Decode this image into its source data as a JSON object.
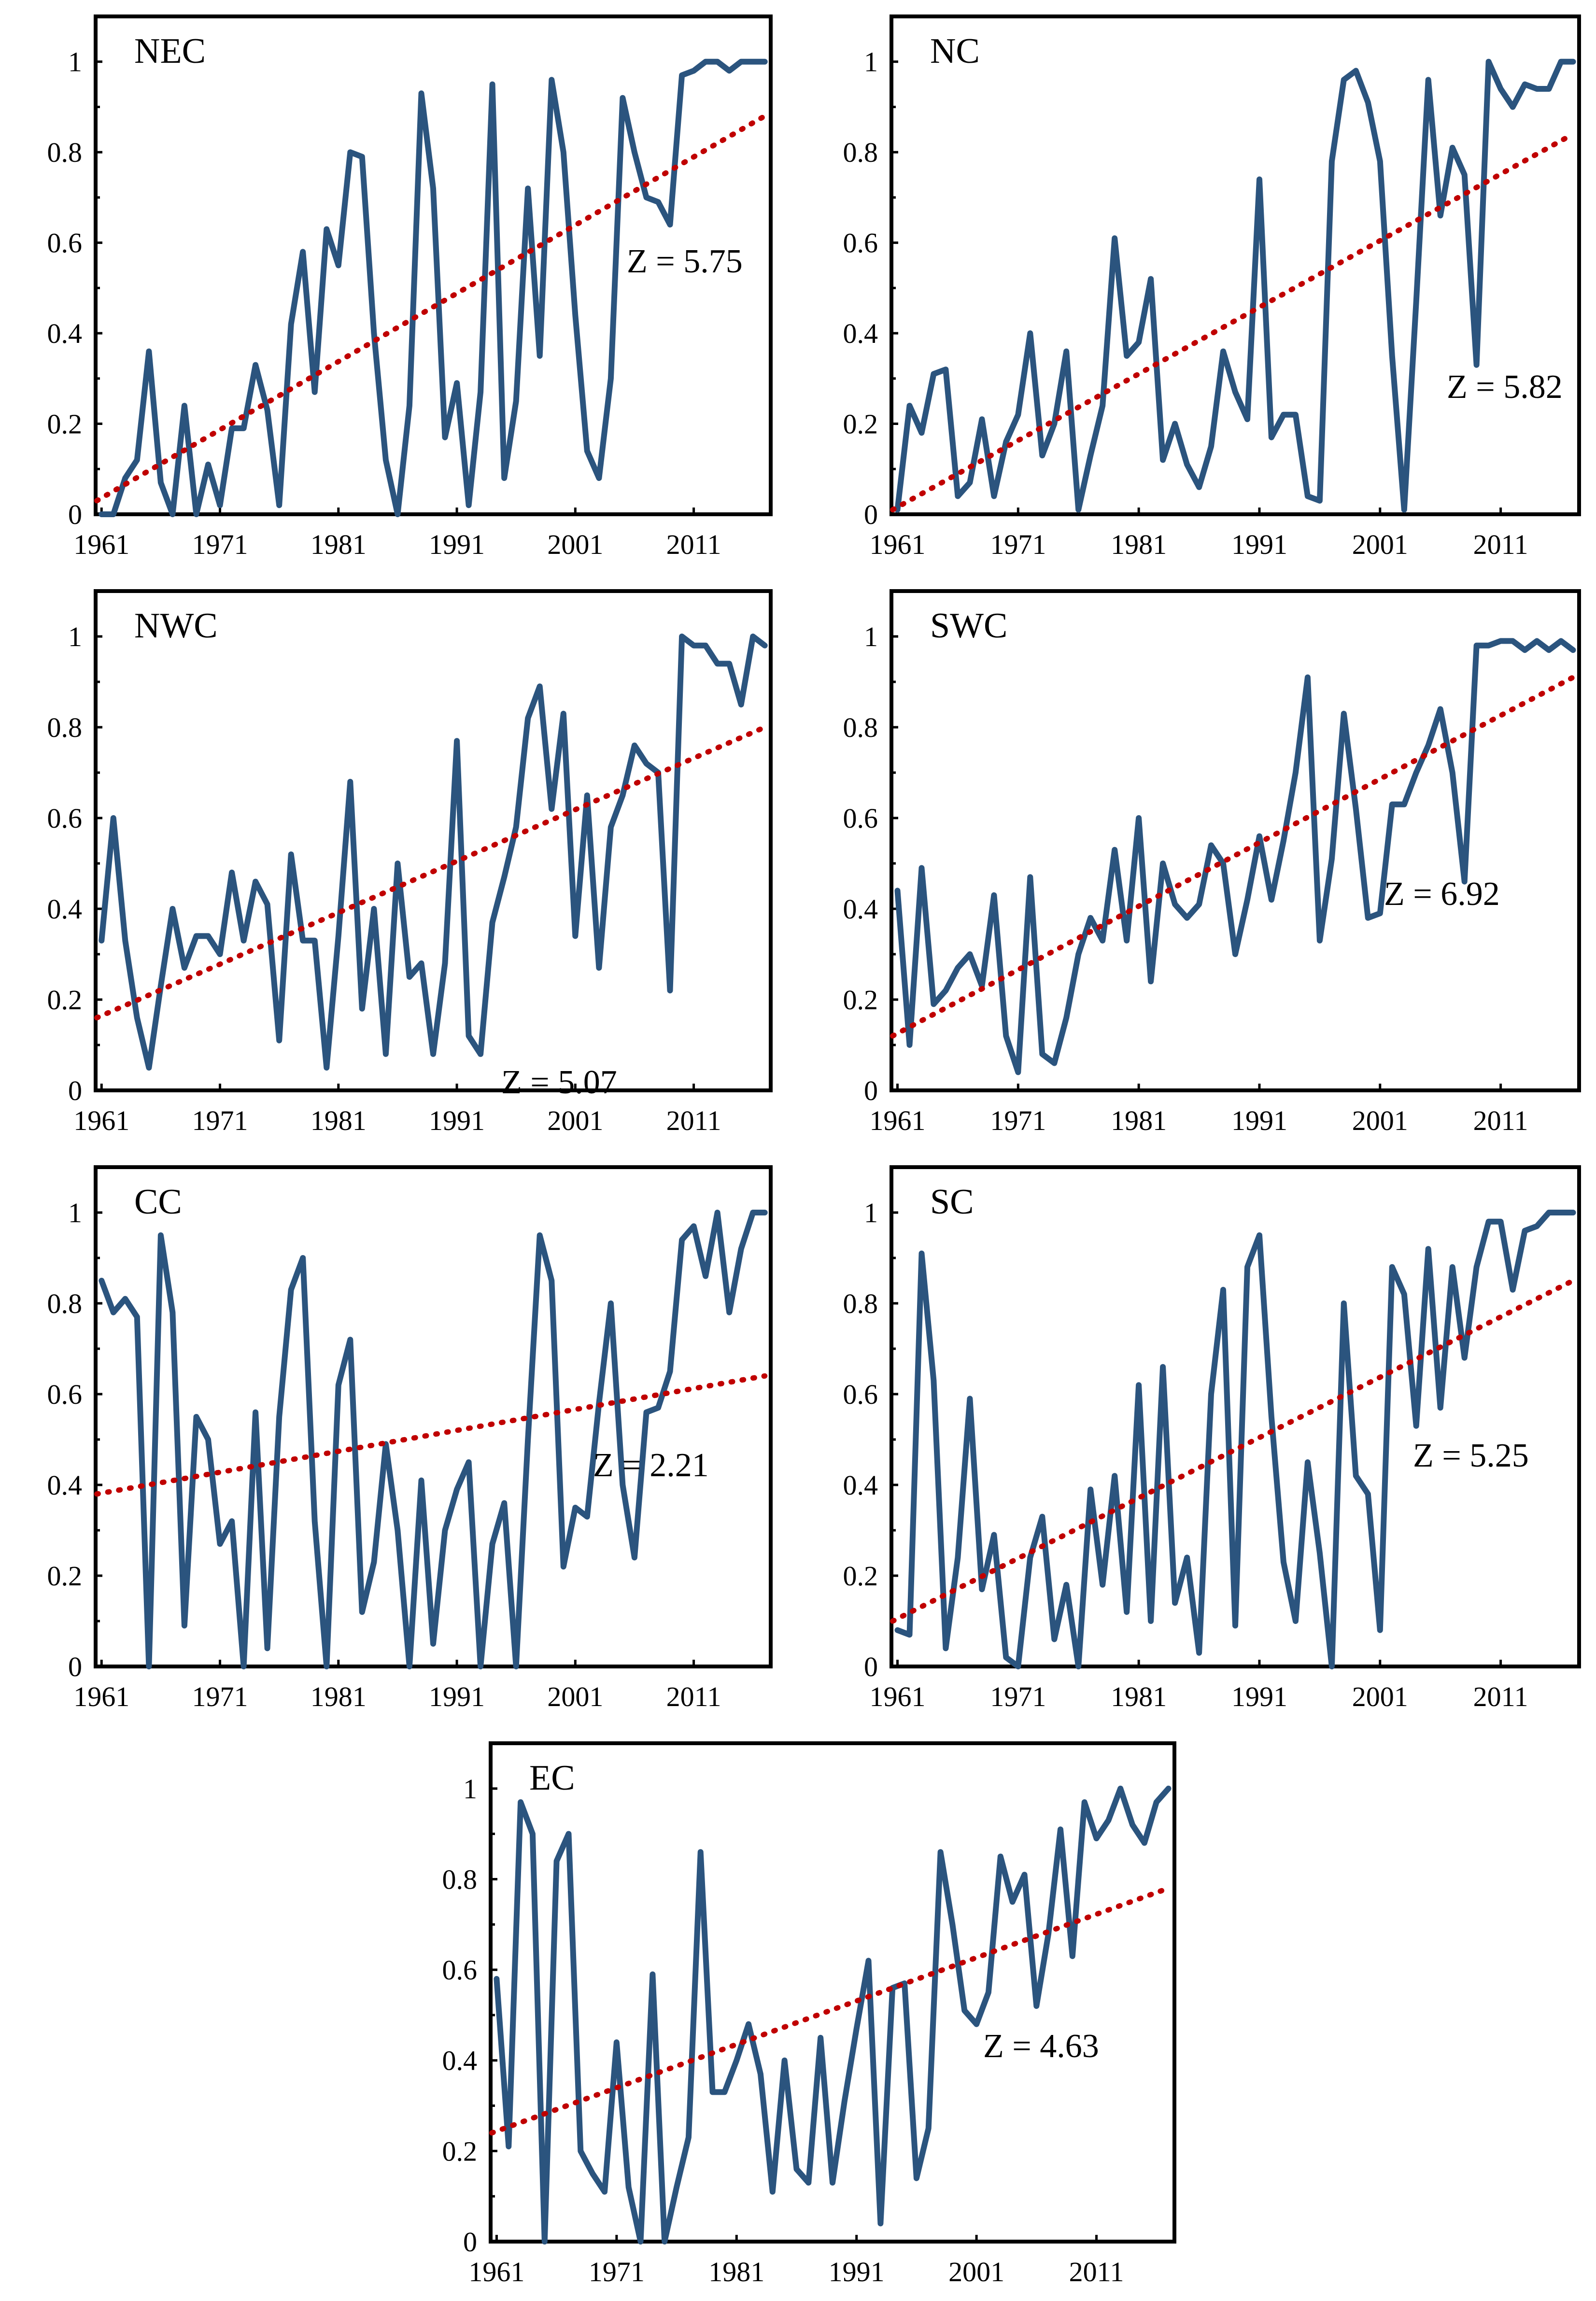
{
  "chart_data": [
    {
      "type": "line",
      "title": "NEC",
      "z_label": "Z = 5.75",
      "x_start": 1961,
      "x_ticks": [
        "1961",
        "1971",
        "1981",
        "1991",
        "2001",
        "2011"
      ],
      "y_ticks": [
        "0",
        "0.2",
        "0.4",
        "0.6",
        "0.8",
        "1"
      ],
      "ylim": [
        0,
        1.1
      ],
      "xlim": [
        1960.5,
        2017.5
      ],
      "series": [
        {
          "name": "NEC",
          "color": "#2b547e",
          "values": [
            0,
            0,
            0.08,
            0.12,
            0.36,
            0.07,
            0,
            0.24,
            0,
            0.11,
            0.02,
            0.19,
            0.19,
            0.33,
            0.23,
            0.02,
            0.42,
            0.58,
            0.27,
            0.63,
            0.55,
            0.8,
            0.79,
            0.4,
            0.12,
            0,
            0.24,
            0.93,
            0.72,
            0.17,
            0.29,
            0.02,
            0.27,
            0.95,
            0.08,
            0.25,
            0.72,
            0.35,
            0.96,
            0.8,
            0.44,
            0.14,
            0.08,
            0.3,
            0.92,
            0.8,
            0.7,
            0.69,
            0.64,
            0.97,
            0.98,
            1.0,
            1.0,
            0.98,
            1.0,
            1.0,
            1.0
          ]
        }
      ],
      "trend": {
        "color": "#c00000",
        "start": 0.03,
        "end": 0.88
      }
    },
    {
      "type": "line",
      "title": "NC",
      "z_label": "Z = 5.82",
      "x_start": 1961,
      "x_ticks": [
        "1961",
        "1971",
        "1981",
        "1991",
        "2001",
        "2011"
      ],
      "y_ticks": [
        "0",
        "0.2",
        "0.4",
        "0.6",
        "0.8",
        "1"
      ],
      "ylim": [
        0,
        1.1
      ],
      "xlim": [
        1960.5,
        2017.5
      ],
      "series": [
        {
          "name": "NC",
          "color": "#2b547e",
          "values": [
            0.01,
            0.24,
            0.18,
            0.31,
            0.32,
            0.04,
            0.07,
            0.21,
            0.04,
            0.16,
            0.22,
            0.4,
            0.13,
            0.2,
            0.36,
            0.01,
            0.13,
            0.24,
            0.61,
            0.35,
            0.38,
            0.52,
            0.12,
            0.2,
            0.11,
            0.06,
            0.15,
            0.36,
            0.27,
            0.21,
            0.74,
            0.17,
            0.22,
            0.22,
            0.04,
            0.03,
            0.78,
            0.96,
            0.98,
            0.91,
            0.78,
            0.35,
            0.01,
            0.47,
            0.96,
            0.66,
            0.81,
            0.75,
            0.33,
            1.0,
            0.94,
            0.9,
            0.95,
            0.94,
            0.94,
            1.0,
            1.0
          ]
        }
      ],
      "trend": {
        "color": "#c00000",
        "start": 0.01,
        "end": 0.84
      }
    },
    {
      "type": "line",
      "title": "NWC",
      "z_label": "Z = 5.07",
      "x_start": 1961,
      "x_ticks": [
        "1961",
        "1971",
        "1981",
        "1991",
        "2001",
        "2011"
      ],
      "y_ticks": [
        "0",
        "0.2",
        "0.4",
        "0.6",
        "0.8",
        "1"
      ],
      "ylim": [
        0,
        1.1
      ],
      "xlim": [
        1960.5,
        2017.5
      ],
      "series": [
        {
          "name": "NWC",
          "color": "#2b547e",
          "values": [
            0.33,
            0.6,
            0.33,
            0.16,
            0.05,
            0.23,
            0.4,
            0.27,
            0.34,
            0.34,
            0.3,
            0.48,
            0.33,
            0.46,
            0.41,
            0.11,
            0.52,
            0.33,
            0.33,
            0.05,
            0.34,
            0.68,
            0.18,
            0.4,
            0.08,
            0.5,
            0.25,
            0.28,
            0.08,
            0.28,
            0.77,
            0.12,
            0.08,
            0.37,
            0.47,
            0.58,
            0.82,
            0.89,
            0.62,
            0.83,
            0.34,
            0.65,
            0.27,
            0.58,
            0.65,
            0.76,
            0.72,
            0.7,
            0.22,
            1.0,
            0.98,
            0.98,
            0.94,
            0.94,
            0.85,
            1.0,
            0.98
          ]
        }
      ],
      "trend": {
        "color": "#c00000",
        "start": 0.16,
        "end": 0.8
      }
    },
    {
      "type": "line",
      "title": "SWC",
      "z_label": "Z = 6.92",
      "x_start": 1961,
      "x_ticks": [
        "1961",
        "1971",
        "1981",
        "1991",
        "2001",
        "2011"
      ],
      "y_ticks": [
        "0",
        "0.2",
        "0.4",
        "0.6",
        "0.8",
        "1"
      ],
      "ylim": [
        0,
        1.1
      ],
      "xlim": [
        1960.5,
        2017.5
      ],
      "series": [
        {
          "name": "SWC",
          "color": "#2b547e",
          "values": [
            0.44,
            0.1,
            0.49,
            0.19,
            0.22,
            0.27,
            0.3,
            0.23,
            0.43,
            0.12,
            0.04,
            0.47,
            0.08,
            0.06,
            0.16,
            0.3,
            0.38,
            0.33,
            0.53,
            0.33,
            0.6,
            0.24,
            0.5,
            0.41,
            0.38,
            0.41,
            0.54,
            0.5,
            0.3,
            0.42,
            0.56,
            0.42,
            0.55,
            0.7,
            0.91,
            0.33,
            0.51,
            0.83,
            0.62,
            0.38,
            0.39,
            0.63,
            0.63,
            0.7,
            0.76,
            0.84,
            0.7,
            0.46,
            0.98,
            0.98,
            0.99,
            0.99,
            0.97,
            0.99,
            0.97,
            0.99,
            0.97
          ]
        }
      ],
      "trend": {
        "color": "#c00000",
        "start": 0.12,
        "end": 0.91
      }
    },
    {
      "type": "line",
      "title": "CC",
      "z_label": "Z = 2.21",
      "x_start": 1961,
      "x_ticks": [
        "1961",
        "1971",
        "1981",
        "1991",
        "2001",
        "2011"
      ],
      "y_ticks": [
        "0",
        "0.2",
        "0.4",
        "0.6",
        "0.8",
        "1"
      ],
      "ylim": [
        0,
        1.1
      ],
      "xlim": [
        1960.5,
        2017.5
      ],
      "series": [
        {
          "name": "CC",
          "color": "#2b547e",
          "values": [
            0.85,
            0.78,
            0.81,
            0.77,
            0,
            0.95,
            0.78,
            0.09,
            0.55,
            0.5,
            0.27,
            0.32,
            0,
            0.56,
            0.04,
            0.55,
            0.83,
            0.9,
            0.32,
            0,
            0.62,
            0.72,
            0.12,
            0.23,
            0.49,
            0.3,
            0,
            0.41,
            0.05,
            0.3,
            0.39,
            0.45,
            0,
            0.27,
            0.36,
            0,
            0.5,
            0.95,
            0.85,
            0.22,
            0.35,
            0.33,
            0.58,
            0.8,
            0.4,
            0.24,
            0.56,
            0.57,
            0.65,
            0.94,
            0.97,
            0.86,
            1.0,
            0.78,
            0.92,
            1.0,
            1.0
          ]
        }
      ],
      "trend": {
        "color": "#c00000",
        "start": 0.38,
        "end": 0.64
      }
    },
    {
      "type": "line",
      "title": "SC",
      "z_label": "Z = 5.25",
      "x_start": 1961,
      "x_ticks": [
        "1961",
        "1971",
        "1981",
        "1991",
        "2001",
        "2011"
      ],
      "y_ticks": [
        "0",
        "0.2",
        "0.4",
        "0.6",
        "0.8",
        "1"
      ],
      "ylim": [
        0,
        1.1
      ],
      "xlim": [
        1960.5,
        2017.5
      ],
      "series": [
        {
          "name": "SC",
          "color": "#2b547e",
          "values": [
            0.08,
            0.07,
            0.91,
            0.63,
            0.04,
            0.24,
            0.59,
            0.17,
            0.29,
            0.02,
            0,
            0.24,
            0.33,
            0.06,
            0.18,
            0,
            0.39,
            0.18,
            0.42,
            0.12,
            0.62,
            0.1,
            0.66,
            0.14,
            0.24,
            0.03,
            0.6,
            0.83,
            0.09,
            0.88,
            0.95,
            0.55,
            0.23,
            0.1,
            0.45,
            0.25,
            0,
            0.8,
            0.42,
            0.38,
            0.08,
            0.88,
            0.82,
            0.53,
            0.92,
            0.57,
            0.88,
            0.68,
            0.88,
            0.98,
            0.98,
            0.83,
            0.96,
            0.97,
            1.0,
            1.0,
            1.0
          ]
        }
      ],
      "trend": {
        "color": "#c00000",
        "start": 0.1,
        "end": 0.85
      }
    },
    {
      "type": "line",
      "title": "EC",
      "z_label": "Z = 4.63",
      "x_start": 1961,
      "x_ticks": [
        "1961",
        "1971",
        "1981",
        "1991",
        "2001",
        "2011"
      ],
      "y_ticks": [
        "0",
        "0.2",
        "0.4",
        "0.6",
        "0.8",
        "1"
      ],
      "ylim": [
        0,
        1.1
      ],
      "xlim": [
        1960.5,
        2017.5
      ],
      "series": [
        {
          "name": "EC",
          "color": "#2b547e",
          "values": [
            0.58,
            0.21,
            0.97,
            0.9,
            0,
            0.84,
            0.9,
            0.2,
            0.15,
            0.11,
            0.44,
            0.12,
            0,
            0.59,
            0,
            0.12,
            0.23,
            0.86,
            0.33,
            0.33,
            0.4,
            0.48,
            0.37,
            0.11,
            0.4,
            0.16,
            0.13,
            0.45,
            0.13,
            0.31,
            0.47,
            0.62,
            0.04,
            0.56,
            0.57,
            0.14,
            0.25,
            0.86,
            0.7,
            0.51,
            0.48,
            0.55,
            0.85,
            0.75,
            0.81,
            0.52,
            0.68,
            0.91,
            0.63,
            0.97,
            0.89,
            0.93,
            1.0,
            0.92,
            0.88,
            0.97,
            1.0
          ]
        }
      ],
      "trend": {
        "color": "#c00000",
        "start": 0.24,
        "end": 0.78
      }
    }
  ]
}
